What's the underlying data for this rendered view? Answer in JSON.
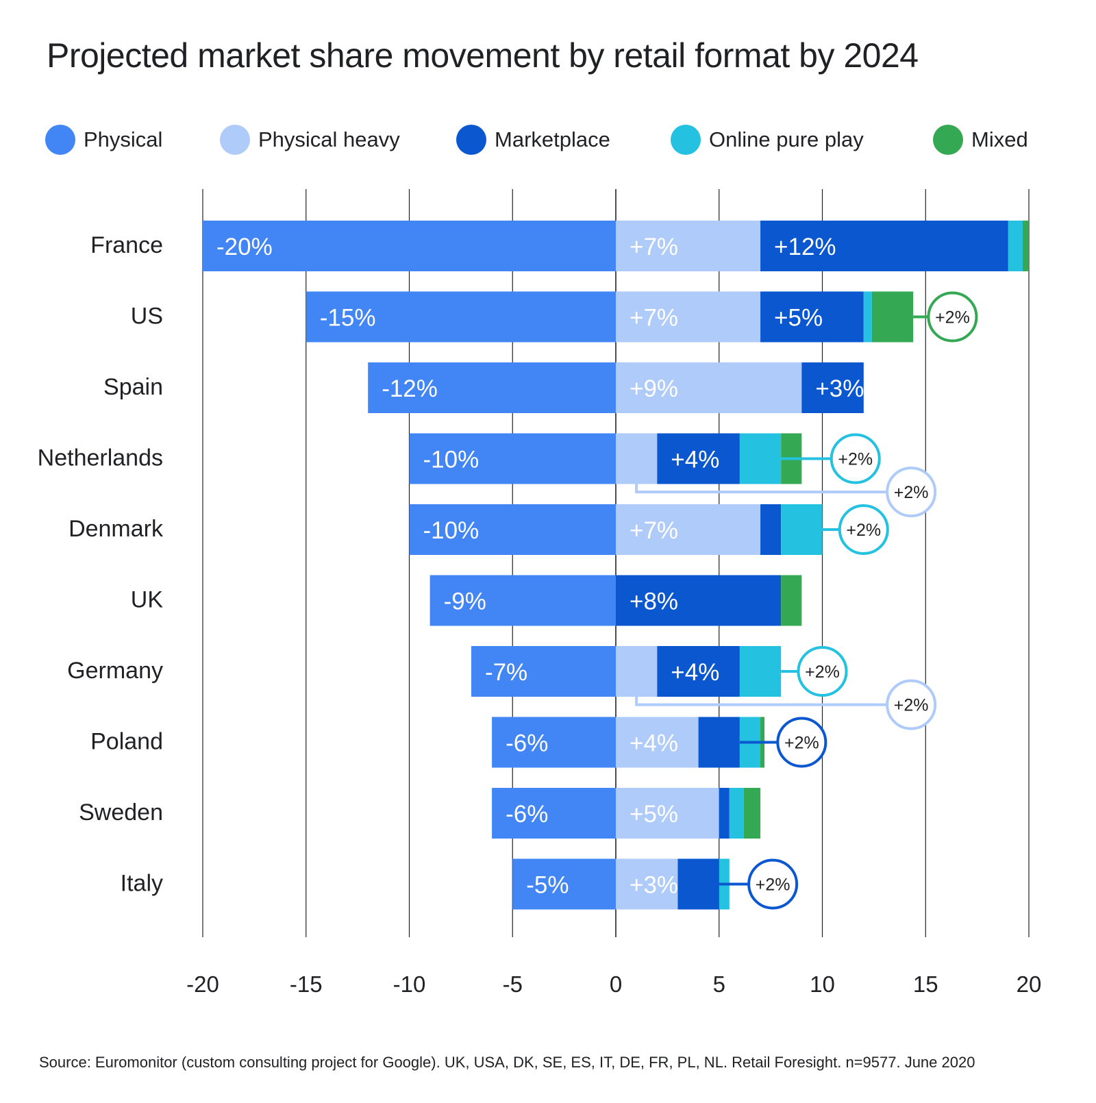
{
  "chart_data": {
    "type": "bar",
    "orientation": "horizontal",
    "stacked": true,
    "title": "Projected market share movement by retail format by 2024",
    "source": "Source: Euromonitor (custom consulting project for Google). UK, USA, DK, SE, ES, IT, DE, FR, PL, NL. Retail Foresight. n=9577. June 2020",
    "xlabel": "",
    "ylabel": "",
    "xlim": [
      -20,
      20
    ],
    "xticks": [
      "-20",
      "-15",
      "-10",
      "-5",
      "0",
      "5",
      "10",
      "15",
      "20"
    ],
    "grid": "vertical",
    "legend_position": "top",
    "categories": [
      "France",
      "US",
      "Spain",
      "Netherlands",
      "Denmark",
      "UK",
      "Germany",
      "Poland",
      "Sweden",
      "Italy"
    ],
    "series": [
      {
        "name": "Physical",
        "color": "#4285f4",
        "values": [
          -20,
          -15,
          -12,
          -10,
          -10,
          -9,
          -7,
          -6,
          -6,
          -5
        ],
        "labels": [
          "-20%",
          "-15%",
          "-12%",
          "-10%",
          "-10%",
          "-9%",
          "-7%",
          "-6%",
          "-6%",
          "-5%"
        ]
      },
      {
        "name": "Physical heavy",
        "color": "#aecbfa",
        "values": [
          7,
          7,
          9,
          2,
          7,
          0,
          2,
          4,
          5,
          3
        ],
        "labels": [
          "+7%",
          "+7%",
          "+9%",
          "",
          "+7%",
          "",
          "",
          "+4%",
          "+5%",
          "+3%"
        ]
      },
      {
        "name": "Marketplace",
        "color": "#0b57d0",
        "values": [
          12,
          5,
          3,
          4,
          1,
          8,
          4,
          2,
          0.5,
          2
        ],
        "labels": [
          "+12%",
          "+5%",
          "+3%",
          "+4%",
          "",
          "+8%",
          "+4%",
          "",
          "",
          ""
        ]
      },
      {
        "name": "Online pure play",
        "color": "#24c1e0",
        "values": [
          0.7,
          0.4,
          0,
          2,
          2,
          0,
          2,
          1,
          0.7,
          0.5
        ],
        "labels": [
          "",
          "",
          "",
          "",
          "",
          "",
          "",
          "",
          "",
          ""
        ]
      },
      {
        "name": "Mixed",
        "color": "#34a853",
        "values": [
          0.3,
          2,
          0,
          1,
          0,
          1,
          0,
          0.2,
          0.8,
          0
        ],
        "labels": [
          "",
          "",
          "",
          "",
          "",
          "",
          "",
          "",
          "",
          ""
        ]
      }
    ],
    "callouts": [
      {
        "category": "US",
        "series": "Mixed",
        "text": "+2%",
        "color": "#34a853",
        "offset_x": 1.9,
        "row_offset": 0
      },
      {
        "category": "Netherlands",
        "series": "Online pure play",
        "text": "+2%",
        "color": "#24c1e0",
        "offset_x": 3.6,
        "row_offset": 0
      },
      {
        "category": "Netherlands",
        "series": "Physical heavy",
        "text": "+2%",
        "color": "#aecbfa",
        "offset_x": 12.3,
        "row_offset": 0.47
      },
      {
        "category": "Denmark",
        "series": "Online pure play",
        "text": "+2%",
        "color": "#24c1e0",
        "offset_x": 2,
        "row_offset": 0
      },
      {
        "category": "Germany",
        "series": "Online pure play",
        "text": "+2%",
        "color": "#24c1e0",
        "offset_x": 2,
        "row_offset": 0
      },
      {
        "category": "Germany",
        "series": "Physical heavy",
        "text": "+2%",
        "color": "#aecbfa",
        "offset_x": 12.3,
        "row_offset": 0.47
      },
      {
        "category": "Poland",
        "series": "Marketplace",
        "text": "+2%",
        "color": "#0b57d0",
        "offset_x": 3,
        "row_offset": 0
      },
      {
        "category": "Italy",
        "series": "Marketplace",
        "text": "+2%",
        "color": "#0b57d0",
        "offset_x": 2.6,
        "row_offset": 0
      }
    ]
  }
}
